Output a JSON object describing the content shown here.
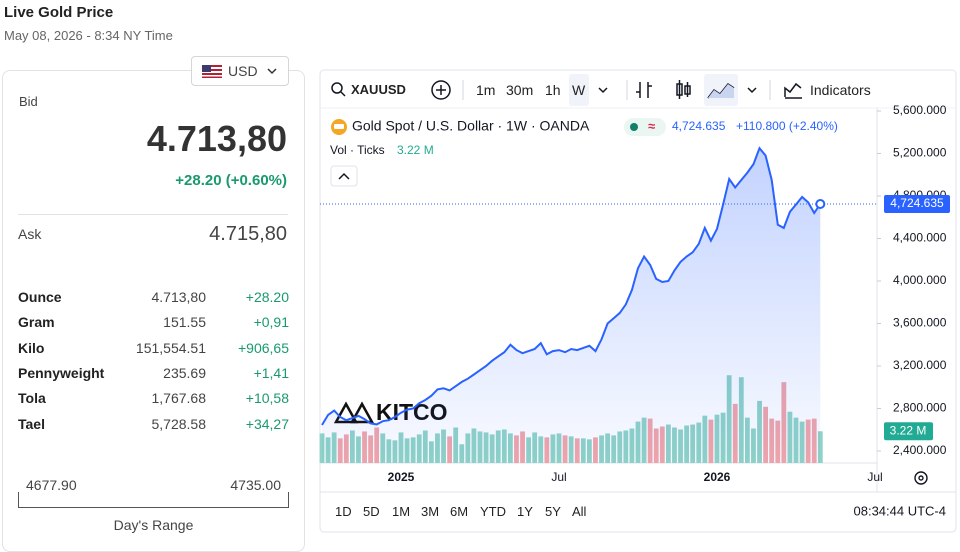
{
  "header": {
    "title": "Live Gold Price",
    "subtitle": "May 08, 2026 - 8:34 NY Time"
  },
  "quote": {
    "currency": "USD",
    "bid_label": "Bid",
    "bid": "4.713,80",
    "change": "+28.20 (+0.60%)",
    "ask_label": "Ask",
    "ask": "4.715,80",
    "rows": [
      [
        "Ounce",
        "4.713,80",
        "+28.20"
      ],
      [
        "Gram",
        "151.55",
        "+0,91"
      ],
      [
        "Kilo",
        "151,554.51",
        "+906,65"
      ],
      [
        "Pennyweight",
        "235.69",
        "+1,41"
      ],
      [
        "Tola",
        "1,767.68",
        "+10,58"
      ],
      [
        "Tael",
        "5,728.58",
        "+34,27"
      ]
    ],
    "range": {
      "low": "4677.90",
      "high": "4735.00",
      "label": "Day's Range"
    }
  },
  "toolbar": {
    "symbol": "XAUUSD",
    "intervals": [
      "1m",
      "30m",
      "1h",
      "W"
    ],
    "indicators": "Indicators"
  },
  "logo": "KITCO",
  "ranges": [
    "1D",
    "5D",
    "1M",
    "3M",
    "6M",
    "YTD",
    "1Y",
    "5Y",
    "All"
  ],
  "clock": "08:34:44 UTC-4",
  "chart_data": {
    "type": "line",
    "legend_change": "+110.800 (+2.40%)",
    "categories": [
      null,
      null,
      null,
      null,
      null,
      null,
      null,
      null,
      null,
      null,
      null,
      null,
      null,
      "2025",
      null,
      null,
      null,
      null,
      null,
      null,
      null,
      null,
      null,
      null,
      null,
      null,
      null,
      null,
      null,
      null,
      null,
      null,
      null,
      null,
      null,
      null,
      null,
      null,
      null,
      "Jul",
      null,
      null,
      null,
      null,
      null,
      null,
      null,
      null,
      null,
      null,
      null,
      null,
      null,
      null,
      null,
      null,
      null,
      null,
      null,
      null,
      null,
      null,
      null,
      null,
      null,
      "2026",
      null,
      null,
      null,
      null,
      null,
      null,
      null,
      null,
      null,
      null,
      null,
      null,
      null,
      null,
      null,
      null,
      null,
      null,
      null,
      null,
      null,
      null,
      null,
      null,
      null,
      "Jul"
    ],
    "series": [
      {
        "name": "Gold Spot / U.S. Dollar · 1W · OANDA",
        "color": "#2962ff",
        "values": [
          2645,
          2740,
          2780,
          2720,
          2690,
          2710,
          2730,
          2700,
          2660,
          2650,
          2680,
          2690,
          2720,
          2760,
          2790,
          2800,
          2850,
          2880,
          2920,
          2980,
          2990,
          2970,
          3010,
          3050,
          3080,
          3120,
          3160,
          3200,
          3250,
          3290,
          3330,
          3400,
          3350,
          3320,
          3340,
          3360,
          3415,
          3310,
          3340,
          3350,
          3330,
          3360,
          3350,
          3370,
          3390,
          3340,
          3450,
          3600,
          3650,
          3700,
          3780,
          3915,
          4120,
          4230,
          4150,
          4020,
          3990,
          4000,
          4100,
          4180,
          4230,
          4270,
          4350,
          4500,
          4380,
          4490,
          4720,
          4960,
          4880,
          4950,
          5020,
          5100,
          5250,
          5180,
          4950,
          4530,
          4500,
          4650,
          4720,
          4790,
          4740,
          4640,
          4724.635,
          null,
          null,
          null,
          null,
          null,
          null,
          null,
          null,
          null
        ],
        "value_labels": [
          null,
          null,
          null,
          null,
          null,
          null,
          null,
          null,
          null,
          null,
          null,
          null,
          null,
          null,
          null,
          null,
          null,
          null,
          null,
          null,
          null,
          null,
          null,
          null,
          null,
          null,
          null,
          null,
          null,
          null,
          null,
          null,
          null,
          null,
          null,
          null,
          null,
          null,
          null,
          null,
          null,
          null,
          null,
          null,
          null,
          null,
          null,
          null,
          null,
          null,
          null,
          null,
          null,
          null,
          null,
          null,
          null,
          null,
          null,
          null,
          null,
          null,
          null,
          null,
          null,
          null,
          null,
          null,
          null,
          null,
          null,
          null,
          null,
          null,
          null,
          null,
          null,
          null,
          null,
          null,
          null,
          null,
          "4,724.635",
          null,
          null,
          null,
          null,
          null,
          null,
          null,
          null,
          null
        ]
      },
      {
        "name": "Vol · Ticks",
        "type": "bar",
        "axis": "y2",
        "up_color": "#8fd3c7",
        "down_color": "#f2a5a9",
        "label_color": "#22ab94",
        "values": [
          3.0,
          2.6,
          3.1,
          2.5,
          2.9,
          3.3,
          2.7,
          3.2,
          2.8,
          3.6,
          3.0,
          2.4,
          2.3,
          3.1,
          2.5,
          2.6,
          2.9,
          3.3,
          2.2,
          3.0,
          3.4,
          2.7,
          3.6,
          1.9,
          3.0,
          3.5,
          3.2,
          3.1,
          2.9,
          3.3,
          3.4,
          3.0,
          2.8,
          3.2,
          2.6,
          3.1,
          2.7,
          2.6,
          2.9,
          3.0,
          2.8,
          2.7,
          2.5,
          2.5,
          2.4,
          2.6,
          2.8,
          3.0,
          2.8,
          3.2,
          3.3,
          3.5,
          4.2,
          4.6,
          4.5,
          3.5,
          3.7,
          3.9,
          3.6,
          3.4,
          3.8,
          3.9,
          4.1,
          4.8,
          4.4,
          4.9,
          5.1,
          8.9,
          6.0,
          8.7,
          4.6,
          3.5,
          6.3,
          5.7,
          4.5,
          4.3,
          8.2,
          5.2,
          4.6,
          4.2,
          4.4,
          4.5,
          3.22,
          null,
          null,
          null,
          null,
          null,
          null,
          null,
          null,
          null
        ],
        "value_labels": [
          null,
          null,
          null,
          null,
          null,
          null,
          null,
          null,
          null,
          null,
          null,
          null,
          null,
          null,
          null,
          null,
          null,
          null,
          null,
          null,
          null,
          null,
          null,
          null,
          null,
          null,
          null,
          null,
          null,
          null,
          null,
          null,
          null,
          null,
          null,
          null,
          null,
          null,
          null,
          null,
          null,
          null,
          null,
          null,
          null,
          null,
          null,
          null,
          null,
          null,
          null,
          null,
          null,
          null,
          null,
          null,
          null,
          null,
          null,
          null,
          null,
          null,
          null,
          null,
          null,
          null,
          null,
          null,
          null,
          null,
          null,
          null,
          null,
          null,
          null,
          null,
          null,
          null,
          null,
          null,
          null,
          null,
          "3.22 M",
          null,
          null,
          null,
          null,
          null,
          null,
          null,
          null,
          null
        ]
      }
    ],
    "ylim": [
      2287,
      5628
    ],
    "yticks": [
      {
        "value": 2400,
        "label": "2,400.000"
      },
      {
        "value": 2800,
        "label": "2,800.000"
      },
      {
        "value": 3200,
        "label": "3,200.000"
      },
      {
        "value": 3600,
        "label": "3,600.000"
      },
      {
        "value": 4000,
        "label": "4,000.000"
      },
      {
        "value": 4400,
        "label": "4,400.000"
      },
      {
        "value": 4800,
        "label": "4,800.000"
      },
      {
        "value": 5200,
        "label": "5,200.000"
      },
      {
        "value": 5600,
        "label": "5,600.000"
      }
    ],
    "y2lim": [
      0,
      36
    ],
    "grid": false
  }
}
